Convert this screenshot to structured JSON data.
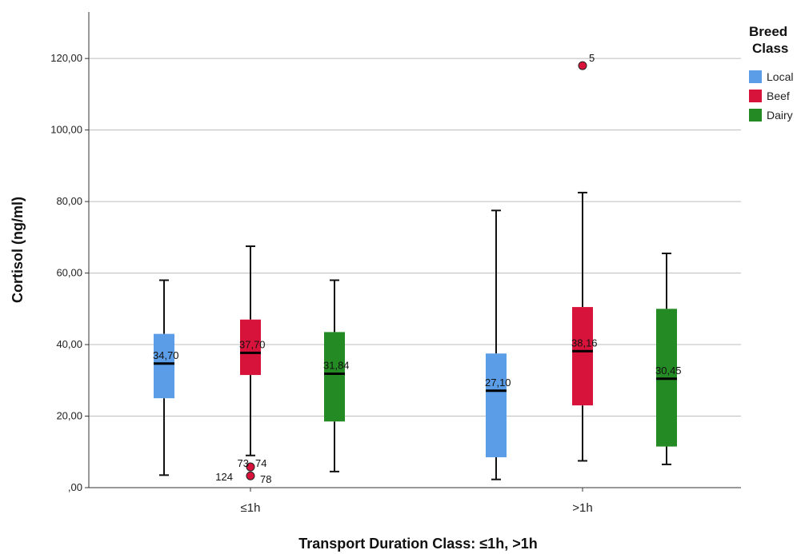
{
  "chart_data": {
    "type": "boxplot",
    "xlabel": "Transport Duration Class: ≤1h, >1h",
    "ylabel": "Cortisol (ng/ml)",
    "ylim": [
      0,
      133
    ],
    "yticks": [
      0,
      20,
      40,
      60,
      80,
      100,
      120
    ],
    "ytick_labels": [
      ",00",
      "20,00",
      "40,00",
      "60,00",
      "80,00",
      "100,00",
      "120,00"
    ],
    "grid": true,
    "legend": {
      "title_line1": "Breed",
      "title_line2": "Class",
      "position": "right"
    },
    "categories": [
      "≤1h",
      ">1h"
    ],
    "series": [
      {
        "name": "Local",
        "color": "#5b9de6"
      },
      {
        "name": "Beef",
        "color": "#d8133b"
      },
      {
        "name": "Dairy",
        "color": "#248a24"
      }
    ],
    "boxes": [
      {
        "category": 0,
        "series": 0,
        "min": 3.5,
        "q1": 25,
        "median": 34.7,
        "q3": 43,
        "max": 58,
        "median_label": "34,70",
        "outliers": []
      },
      {
        "category": 0,
        "series": 1,
        "min": 9,
        "q1": 31.5,
        "median": 37.7,
        "q3": 47,
        "max": 67.5,
        "median_label": "37,70",
        "outliers": [
          {
            "value": 5.8,
            "label_left": "73",
            "label_right": "74"
          },
          {
            "value": 3.3,
            "label_left": "124",
            "label_right": "78"
          }
        ]
      },
      {
        "category": 0,
        "series": 2,
        "min": 4.5,
        "q1": 18.5,
        "median": 31.84,
        "q3": 43.5,
        "max": 58,
        "median_label": "31,84",
        "outliers": []
      },
      {
        "category": 1,
        "series": 0,
        "min": 2.3,
        "q1": 8.5,
        "median": 27.1,
        "q3": 37.5,
        "max": 77.5,
        "median_label": "27,10",
        "outliers": []
      },
      {
        "category": 1,
        "series": 1,
        "min": 7.5,
        "q1": 23,
        "median": 38.16,
        "q3": 50.5,
        "max": 82.5,
        "median_label": "38,16",
        "outliers": [
          {
            "value": 118,
            "label_right": "5"
          }
        ]
      },
      {
        "category": 1,
        "series": 2,
        "min": 6.5,
        "q1": 11.5,
        "median": 30.45,
        "q3": 50,
        "max": 65.5,
        "median_label": "30,45",
        "outliers": []
      }
    ]
  }
}
